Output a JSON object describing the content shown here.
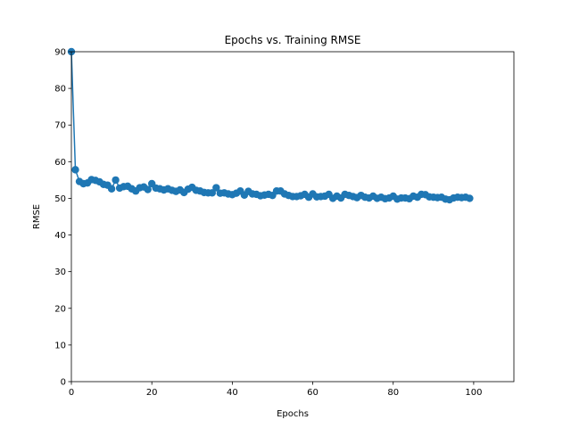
{
  "chart_data": {
    "type": "line",
    "title": "Epochs vs. Training RMSE",
    "xlabel": "Epochs",
    "ylabel": "RMSE",
    "xlim": [
      0,
      110
    ],
    "ylim": [
      0,
      90
    ],
    "xticks": [
      0,
      20,
      40,
      60,
      80,
      100
    ],
    "yticks": [
      0,
      10,
      20,
      30,
      40,
      50,
      60,
      70,
      80,
      90
    ],
    "grid": false,
    "series": [
      {
        "color": "#1f77b4",
        "marker": "circle",
        "x": [
          0,
          1,
          2,
          3,
          4,
          5,
          6,
          7,
          8,
          9,
          10,
          11,
          12,
          13,
          14,
          15,
          16,
          17,
          18,
          19,
          20,
          21,
          22,
          23,
          24,
          25,
          26,
          27,
          28,
          29,
          30,
          31,
          32,
          33,
          34,
          35,
          36,
          37,
          38,
          39,
          40,
          41,
          42,
          43,
          44,
          45,
          46,
          47,
          48,
          49,
          50,
          51,
          52,
          53,
          54,
          55,
          56,
          57,
          58,
          59,
          60,
          61,
          62,
          63,
          64,
          65,
          66,
          67,
          68,
          69,
          70,
          71,
          72,
          73,
          74,
          75,
          76,
          77,
          78,
          79,
          80,
          81,
          82,
          83,
          84,
          85,
          86,
          87,
          88,
          89,
          90,
          91,
          92,
          93,
          94,
          95,
          96,
          97,
          98,
          99
        ],
        "y": [
          90,
          57.8,
          54.6,
          54.0,
          54.2,
          55.1,
          54.9,
          54.5,
          53.8,
          53.6,
          52.6,
          55.0,
          52.8,
          53.2,
          53.3,
          52.6,
          52.0,
          52.9,
          53.1,
          52.4,
          54.0,
          52.8,
          52.6,
          52.3,
          52.6,
          52.2,
          51.9,
          52.3,
          51.6,
          52.5,
          53.0,
          52.2,
          52.0,
          51.6,
          51.5,
          51.5,
          52.9,
          51.4,
          51.5,
          51.2,
          51.0,
          51.4,
          52.0,
          50.9,
          51.9,
          51.2,
          51.1,
          50.7,
          50.9,
          51.1,
          50.8,
          52.0,
          52.0,
          51.2,
          50.8,
          50.5,
          50.5,
          50.7,
          51.1,
          50.3,
          51.2,
          50.4,
          50.5,
          50.6,
          51.1,
          50.0,
          50.6,
          50.1,
          51.1,
          50.8,
          50.5,
          50.2,
          50.8,
          50.3,
          50.1,
          50.6,
          50.0,
          50.3,
          49.9,
          50.1,
          50.6,
          49.8,
          50.1,
          50.1,
          49.9,
          50.6,
          50.3,
          51.1,
          51.0,
          50.4,
          50.3,
          50.2,
          50.3,
          49.8,
          49.6,
          50.1,
          50.3,
          50.2,
          50.3,
          50.0
        ]
      }
    ]
  }
}
